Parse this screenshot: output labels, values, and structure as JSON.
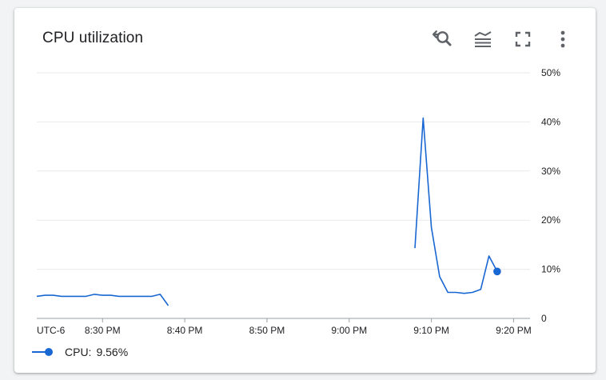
{
  "card": {
    "title": "CPU utilization",
    "tools": [
      {
        "name": "zoom-reset-button",
        "icon": "zoom-reset-icon"
      },
      {
        "name": "chart-type-button",
        "icon": "stacked-lines-icon"
      },
      {
        "name": "fullscreen-button",
        "icon": "fullscreen-icon"
      },
      {
        "name": "more-options-button",
        "icon": "more-vert-icon"
      }
    ]
  },
  "legend": {
    "label": "CPU:",
    "value": "9.56%"
  },
  "colors": {
    "series": "#1967d2",
    "grid": "#e8eaed",
    "axis": "#5f6368",
    "text": "#202124",
    "icon": "#5f6368"
  },
  "chart_data": {
    "type": "line",
    "title": "CPU utilization",
    "xlabel": "",
    "ylabel": "",
    "timezone_label": "UTC-6",
    "xlim": [
      "20:22",
      "21:22"
    ],
    "ylim": [
      0,
      50
    ],
    "y_ticks": [
      0,
      10,
      20,
      30,
      40,
      50
    ],
    "y_tick_labels": [
      "0",
      "10%",
      "20%",
      "30%",
      "40%",
      "50%"
    ],
    "x_ticks": [
      "20:30",
      "20:40",
      "20:50",
      "21:00",
      "21:10",
      "21:20"
    ],
    "x_tick_labels": [
      "8:30 PM",
      "8:40 PM",
      "8:50 PM",
      "9:00 PM",
      "9:10 PM",
      "9:20 PM"
    ],
    "grid": true,
    "y_axis_position": "right",
    "legend_position": "bottom-left",
    "series": [
      {
        "name": "CPU",
        "segments": [
          [
            {
              "x": "20:22",
              "y": 4.5
            },
            {
              "x": "20:23",
              "y": 4.7
            },
            {
              "x": "20:24",
              "y": 4.7
            },
            {
              "x": "20:25",
              "y": 4.5
            },
            {
              "x": "20:26",
              "y": 4.5
            },
            {
              "x": "20:27",
              "y": 4.5
            },
            {
              "x": "20:28",
              "y": 4.5
            },
            {
              "x": "20:29",
              "y": 4.9
            },
            {
              "x": "20:30",
              "y": 4.7
            },
            {
              "x": "20:31",
              "y": 4.7
            },
            {
              "x": "20:32",
              "y": 4.5
            },
            {
              "x": "20:33",
              "y": 4.5
            },
            {
              "x": "20:34",
              "y": 4.5
            },
            {
              "x": "20:35",
              "y": 4.5
            },
            {
              "x": "20:36",
              "y": 4.5
            },
            {
              "x": "20:37",
              "y": 4.9
            },
            {
              "x": "20:38",
              "y": 2.6
            }
          ],
          [
            {
              "x": "21:08",
              "y": 14.3
            },
            {
              "x": "21:09",
              "y": 40.8
            },
            {
              "x": "21:10",
              "y": 18.5
            },
            {
              "x": "21:11",
              "y": 8.5
            },
            {
              "x": "21:12",
              "y": 5.3
            },
            {
              "x": "21:13",
              "y": 5.3
            },
            {
              "x": "21:14",
              "y": 5.1
            },
            {
              "x": "21:15",
              "y": 5.3
            },
            {
              "x": "21:16",
              "y": 5.9
            },
            {
              "x": "21:17",
              "y": 12.7
            },
            {
              "x": "21:18",
              "y": 9.56
            }
          ]
        ],
        "highlight": {
          "x": "21:18",
          "y": 9.56
        }
      }
    ]
  }
}
